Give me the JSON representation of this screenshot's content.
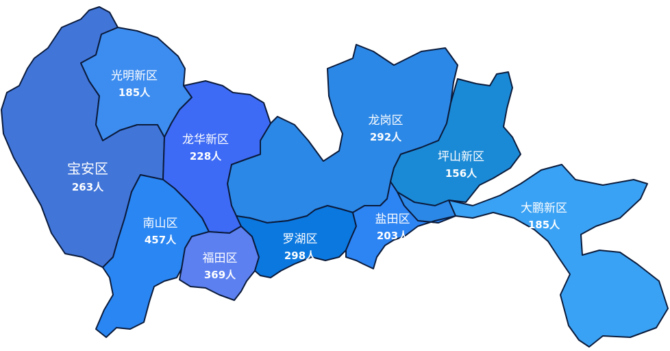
{
  "map": {
    "districts": [
      {
        "id": "baoan",
        "name": "宝安区",
        "value": "263人",
        "color": "#4175d8"
      },
      {
        "id": "guangming",
        "name": "光明新区",
        "value": "185人",
        "color": "#3d8df0"
      },
      {
        "id": "longhua",
        "name": "龙华新区",
        "value": "228人",
        "color": "#3e6bf5"
      },
      {
        "id": "nanshan",
        "name": "南山区",
        "value": "457人",
        "color": "#2a86f3"
      },
      {
        "id": "futian",
        "name": "福田区",
        "value": "369人",
        "color": "#5c80f0"
      },
      {
        "id": "luohu",
        "name": "罗湖区",
        "value": "298人",
        "color": "#0b78e0"
      },
      {
        "id": "longgang",
        "name": "龙岗区",
        "value": "292人",
        "color": "#2c88e6"
      },
      {
        "id": "yantian",
        "name": "盐田区",
        "value": "203人",
        "color": "#2d84f3"
      },
      {
        "id": "pingshan",
        "name": "坪山新区",
        "value": "156人",
        "color": "#1b8ad6"
      },
      {
        "id": "dapeng",
        "name": "大鹏新区",
        "value": "185人",
        "color": "#3aa2f4"
      }
    ]
  }
}
